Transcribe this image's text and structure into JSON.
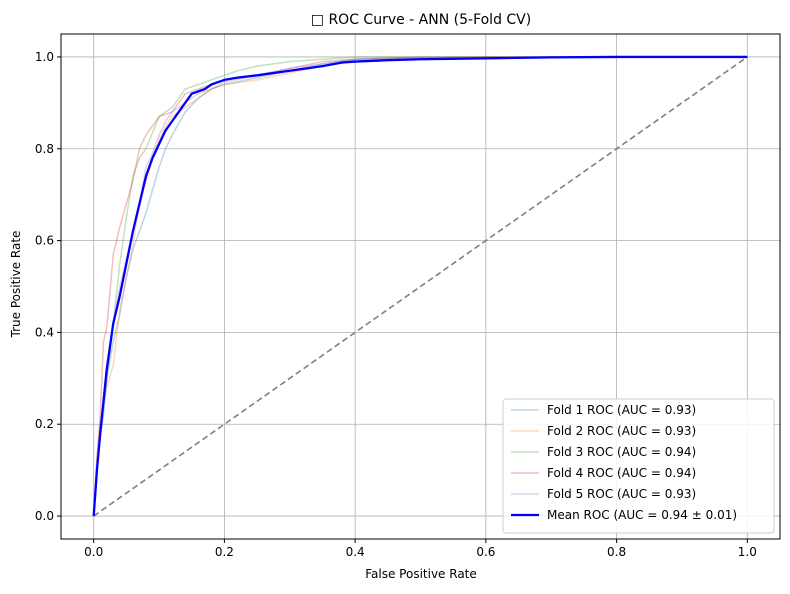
{
  "chart_data": {
    "type": "line",
    "title": "□ ROC Curve - ANN (5-Fold CV)",
    "xlabel": "False Positive Rate",
    "ylabel": "True Positive Rate",
    "xlim": [
      -0.05,
      1.05
    ],
    "ylim": [
      -0.05,
      1.05
    ],
    "xticks": [
      0.0,
      0.2,
      0.4,
      0.6,
      0.8,
      1.0
    ],
    "yticks": [
      0.0,
      0.2,
      0.4,
      0.6,
      0.8,
      1.0
    ],
    "xtick_labels": [
      "0.0",
      "0.2",
      "0.4",
      "0.6",
      "0.8",
      "1.0"
    ],
    "ytick_labels": [
      "0.0",
      "0.2",
      "0.4",
      "0.6",
      "0.8",
      "1.0"
    ],
    "grid": true,
    "legend_position": "lower-right",
    "series": [
      {
        "name": "Fold 1 ROC (AUC = 0.93)",
        "color": "#1f77b4",
        "opacity": 0.3,
        "width": 1.5,
        "x": [
          0.0,
          0.005,
          0.01,
          0.015,
          0.02,
          0.03,
          0.04,
          0.05,
          0.06,
          0.07,
          0.08,
          0.09,
          0.1,
          0.11,
          0.12,
          0.14,
          0.16,
          0.18,
          0.2,
          0.25,
          0.3,
          0.35,
          0.4,
          0.5,
          0.6,
          0.8,
          1.0
        ],
        "y": [
          0.0,
          0.1,
          0.17,
          0.22,
          0.3,
          0.38,
          0.44,
          0.52,
          0.58,
          0.62,
          0.66,
          0.71,
          0.76,
          0.8,
          0.83,
          0.88,
          0.91,
          0.93,
          0.94,
          0.955,
          0.97,
          0.985,
          0.995,
          0.998,
          1.0,
          1.0,
          1.0
        ]
      },
      {
        "name": "Fold 2 ROC (AUC = 0.93)",
        "color": "#ff7f0e",
        "opacity": 0.3,
        "width": 1.5,
        "x": [
          0.0,
          0.005,
          0.01,
          0.02,
          0.03,
          0.04,
          0.05,
          0.06,
          0.07,
          0.08,
          0.09,
          0.1,
          0.11,
          0.12,
          0.14,
          0.16,
          0.18,
          0.2,
          0.25,
          0.3,
          0.35,
          0.4,
          0.5,
          0.6,
          0.8,
          1.0
        ],
        "y": [
          0.0,
          0.12,
          0.2,
          0.28,
          0.33,
          0.45,
          0.52,
          0.59,
          0.68,
          0.73,
          0.78,
          0.82,
          0.85,
          0.87,
          0.89,
          0.91,
          0.93,
          0.94,
          0.95,
          0.965,
          0.98,
          0.99,
          0.997,
          1.0,
          1.0,
          1.0
        ]
      },
      {
        "name": "Fold 3 ROC (AUC = 0.94)",
        "color": "#2ca02c",
        "opacity": 0.3,
        "width": 1.5,
        "x": [
          0.0,
          0.005,
          0.01,
          0.02,
          0.03,
          0.04,
          0.05,
          0.06,
          0.07,
          0.08,
          0.1,
          0.11,
          0.12,
          0.14,
          0.16,
          0.18,
          0.2,
          0.22,
          0.25,
          0.3,
          0.35,
          0.4,
          0.5,
          0.6,
          0.8,
          1.0
        ],
        "y": [
          0.0,
          0.11,
          0.17,
          0.3,
          0.42,
          0.55,
          0.65,
          0.74,
          0.78,
          0.8,
          0.87,
          0.88,
          0.89,
          0.93,
          0.94,
          0.95,
          0.96,
          0.97,
          0.98,
          0.99,
          0.995,
          1.0,
          1.0,
          1.0,
          1.0,
          1.0
        ]
      },
      {
        "name": "Fold 4 ROC (AUC = 0.94)",
        "color": "#d62728",
        "opacity": 0.3,
        "width": 1.5,
        "x": [
          0.0,
          0.005,
          0.01,
          0.015,
          0.02,
          0.03,
          0.04,
          0.05,
          0.06,
          0.07,
          0.08,
          0.1,
          0.12,
          0.14,
          0.16,
          0.18,
          0.2,
          0.25,
          0.3,
          0.35,
          0.4,
          0.5,
          0.6,
          0.8,
          1.0
        ],
        "y": [
          0.0,
          0.13,
          0.22,
          0.38,
          0.41,
          0.57,
          0.63,
          0.68,
          0.73,
          0.8,
          0.83,
          0.87,
          0.88,
          0.92,
          0.93,
          0.94,
          0.95,
          0.96,
          0.975,
          0.99,
          0.995,
          1.0,
          1.0,
          1.0,
          1.0
        ]
      },
      {
        "name": "Fold 5 ROC (AUC = 0.93)",
        "color": "#9467bd",
        "opacity": 0.3,
        "width": 1.5,
        "x": [
          0.0,
          0.005,
          0.01,
          0.02,
          0.03,
          0.04,
          0.05,
          0.06,
          0.07,
          0.08,
          0.09,
          0.1,
          0.11,
          0.12,
          0.14,
          0.16,
          0.18,
          0.2,
          0.25,
          0.3,
          0.35,
          0.4,
          0.5,
          0.6,
          0.8,
          1.0
        ],
        "y": [
          0.0,
          0.1,
          0.19,
          0.3,
          0.42,
          0.5,
          0.56,
          0.62,
          0.68,
          0.76,
          0.79,
          0.83,
          0.86,
          0.88,
          0.9,
          0.92,
          0.93,
          0.945,
          0.96,
          0.975,
          0.985,
          0.995,
          0.998,
          1.0,
          1.0,
          1.0
        ]
      },
      {
        "name": "Mean ROC (AUC = 0.94 ± 0.01)",
        "color": "#0000ff",
        "opacity": 1.0,
        "width": 2.3,
        "x": [
          0.0,
          0.005,
          0.01,
          0.015,
          0.02,
          0.025,
          0.03,
          0.04,
          0.05,
          0.06,
          0.07,
          0.08,
          0.09,
          0.1,
          0.11,
          0.12,
          0.13,
          0.14,
          0.15,
          0.16,
          0.17,
          0.18,
          0.19,
          0.2,
          0.22,
          0.25,
          0.3,
          0.35,
          0.38,
          0.4,
          0.45,
          0.5,
          0.6,
          0.7,
          0.8,
          0.9,
          1.0
        ],
        "y": [
          0.0,
          0.1,
          0.18,
          0.25,
          0.32,
          0.37,
          0.42,
          0.48,
          0.55,
          0.62,
          0.68,
          0.74,
          0.78,
          0.81,
          0.84,
          0.86,
          0.88,
          0.9,
          0.92,
          0.925,
          0.93,
          0.94,
          0.945,
          0.95,
          0.955,
          0.96,
          0.97,
          0.98,
          0.988,
          0.99,
          0.993,
          0.995,
          0.997,
          0.999,
          1.0,
          1.0,
          1.0
        ]
      }
    ],
    "reference_line": {
      "x": [
        0.0,
        1.0
      ],
      "y": [
        0.0,
        1.0
      ],
      "color": "#808080",
      "style": "dashed"
    }
  }
}
